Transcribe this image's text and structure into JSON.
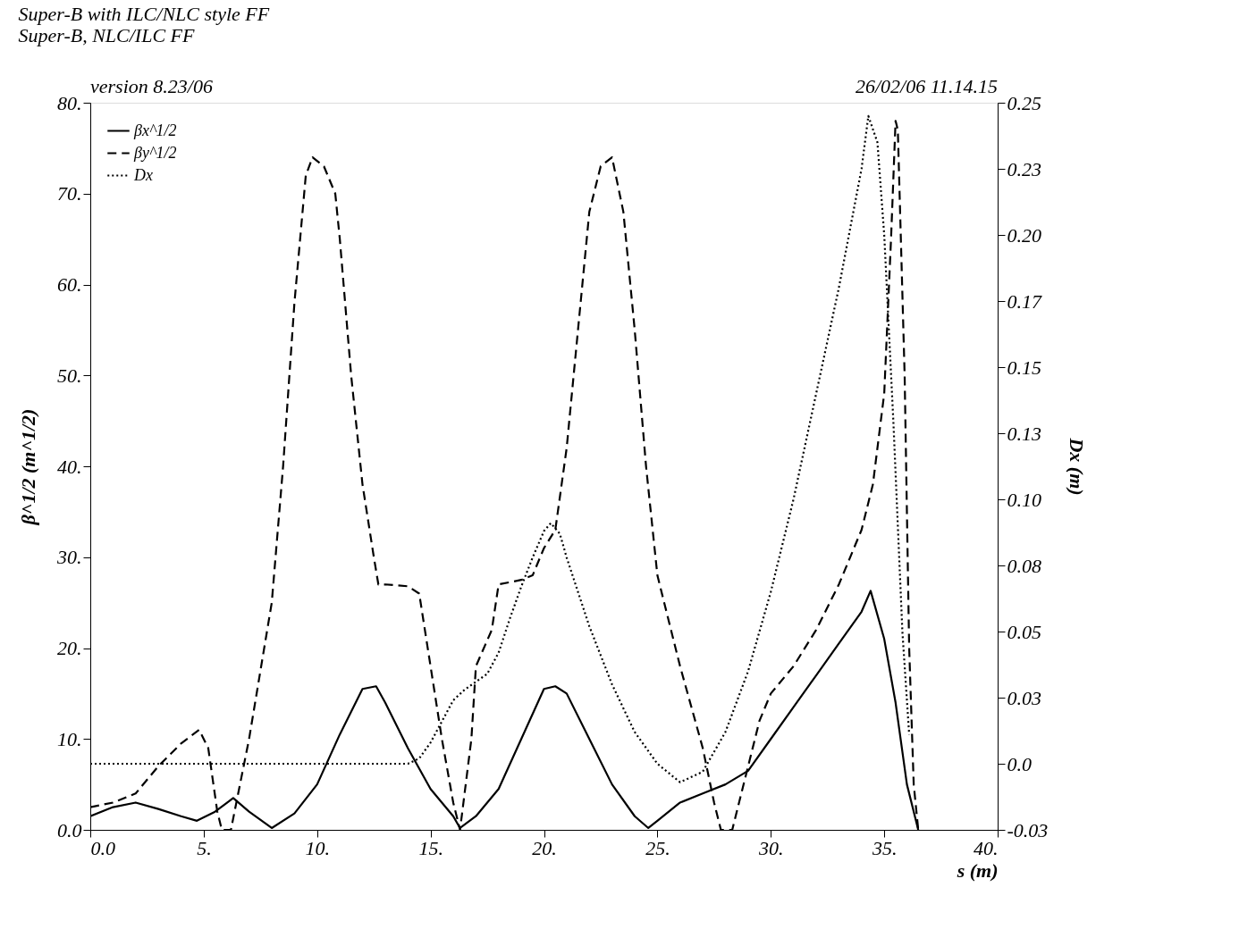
{
  "chart_data": {
    "type": "line",
    "title": "Super-B with ILC/NLC style FF",
    "subtitle": "Super-B, NLC/ILC FF",
    "xlabel": "s (m)",
    "ylabel": "β^1/2 (m^1/2)",
    "y2label": "Dx (m)",
    "annotations": [
      "version 8.23/06",
      "26/02/06  11.14.15"
    ],
    "xlim": [
      0,
      40
    ],
    "xticks": [
      {
        "value": 0,
        "label": "0.0"
      },
      {
        "value": 5,
        "label": "5."
      },
      {
        "value": 10,
        "label": "10."
      },
      {
        "value": 15,
        "label": "15."
      },
      {
        "value": 20,
        "label": "20."
      },
      {
        "value": 25,
        "label": "25."
      },
      {
        "value": 30,
        "label": "30."
      },
      {
        "value": 35,
        "label": "35."
      },
      {
        "value": 40,
        "label": "40."
      }
    ],
    "ylim": [
      0,
      80
    ],
    "yticks": [
      {
        "value": 0,
        "label": "0.0"
      },
      {
        "value": 10,
        "label": "10."
      },
      {
        "value": 20,
        "label": "20."
      },
      {
        "value": 30,
        "label": "30."
      },
      {
        "value": 40,
        "label": "40."
      },
      {
        "value": 50,
        "label": "50."
      },
      {
        "value": 60,
        "label": "60."
      },
      {
        "value": 70,
        "label": "70."
      },
      {
        "value": 80,
        "label": "80."
      }
    ],
    "y2lim": [
      -0.025,
      0.25
    ],
    "y2ticks": [
      {
        "value": -0.025,
        "label": "-0.03"
      },
      {
        "value": 0,
        "label": "0.0"
      },
      {
        "value": 0.025,
        "label": "0.03"
      },
      {
        "value": 0.05,
        "label": "0.05"
      },
      {
        "value": 0.075,
        "label": "0.08"
      },
      {
        "value": 0.1,
        "label": "0.10"
      },
      {
        "value": 0.125,
        "label": "0.13"
      },
      {
        "value": 0.15,
        "label": "0.15"
      },
      {
        "value": 0.175,
        "label": "0.17"
      },
      {
        "value": 0.2,
        "label": "0.20"
      },
      {
        "value": 0.225,
        "label": "0.23"
      },
      {
        "value": 0.25,
        "label": "0.25"
      }
    ],
    "grid": false,
    "legend": "top left",
    "marker": "none",
    "series": [
      {
        "name": "βx^1/2",
        "color": "#000000",
        "line_style": "solid",
        "x": [
          0,
          1,
          2,
          3,
          4,
          4.7,
          5.5,
          6.3,
          7,
          8,
          9,
          10,
          11,
          12,
          12.6,
          13,
          14,
          15,
          16,
          16.3,
          17,
          18,
          19,
          20,
          20.5,
          21,
          22,
          23,
          24,
          24.6,
          25,
          26,
          27,
          28,
          29,
          30,
          31,
          32,
          33,
          34,
          34.4,
          35,
          35.5,
          36,
          36.5
        ],
        "values": [
          1.5,
          2.5,
          3,
          2.3,
          1.5,
          1,
          2,
          3.5,
          2,
          0.2,
          1.8,
          5,
          10.5,
          15.5,
          15.8,
          14,
          9,
          4.5,
          1.5,
          0.2,
          1.5,
          4.5,
          10,
          15.5,
          15.8,
          15,
          10,
          5,
          1.5,
          0.2,
          1,
          3,
          4,
          5,
          6.5,
          10,
          13.5,
          17,
          20.5,
          24,
          26.3,
          21,
          14,
          5,
          0
        ]
      },
      {
        "name": "βy^1/2",
        "color": "#000000",
        "line_style": "dashed",
        "x": [
          0,
          1,
          2,
          3,
          4,
          4.8,
          5.2,
          5.6,
          5.8,
          6.2,
          7,
          8,
          8.5,
          9,
          9.5,
          9.8,
          10.3,
          10.8,
          11,
          11.5,
          12,
          12.5,
          12.7,
          13,
          14,
          14.5,
          15,
          15.5,
          16,
          16.3,
          16.8,
          17,
          17.7,
          18,
          19,
          19.5,
          20,
          20.5,
          21,
          21.5,
          22,
          22.5,
          23,
          23.5,
          24,
          24.5,
          25,
          26,
          27,
          27.5,
          27.8,
          28.3,
          29,
          29.5,
          30,
          31,
          32,
          33,
          34,
          34.5,
          35,
          35.3,
          35.5,
          35.6,
          35.9,
          36.1,
          36.3,
          36.5
        ],
        "values": [
          2.5,
          3,
          4,
          7,
          9.5,
          11,
          9,
          2,
          0,
          0,
          10,
          25,
          40,
          58,
          72,
          74,
          73,
          70,
          65,
          50,
          38,
          30,
          27,
          27,
          26.8,
          26,
          18,
          10,
          3,
          0,
          10,
          18,
          22,
          27,
          27.5,
          28,
          31,
          33,
          42,
          55,
          68,
          73,
          74,
          68,
          55,
          40,
          28,
          18,
          9,
          3,
          0,
          0,
          7,
          12,
          15,
          18,
          22,
          27,
          33,
          38,
          48,
          65,
          78,
          77,
          50,
          20,
          5,
          0
        ]
      },
      {
        "name": "Dx",
        "color": "#000000",
        "line_style": "dotted",
        "axis": "y2",
        "x": [
          0,
          14,
          14.5,
          15,
          15.5,
          16,
          16.5,
          17,
          17.5,
          18,
          18.5,
          19,
          19.5,
          20,
          20.3,
          20.7,
          21,
          22,
          23,
          24,
          25,
          26,
          27,
          28,
          29,
          30,
          31,
          32,
          33,
          34,
          34.3,
          34.7,
          35,
          35.4,
          35.8,
          36.1
        ],
        "values": [
          0,
          0,
          0.002,
          0.008,
          0.016,
          0.024,
          0.028,
          0.031,
          0.034,
          0.042,
          0.055,
          0.067,
          0.078,
          0.088,
          0.091,
          0.087,
          0.078,
          0.052,
          0.03,
          0.012,
          0,
          -0.007,
          -0.003,
          0.012,
          0.035,
          0.065,
          0.1,
          0.14,
          0.18,
          0.225,
          0.245,
          0.235,
          0.2,
          0.13,
          0.05,
          0.011
        ]
      }
    ]
  }
}
